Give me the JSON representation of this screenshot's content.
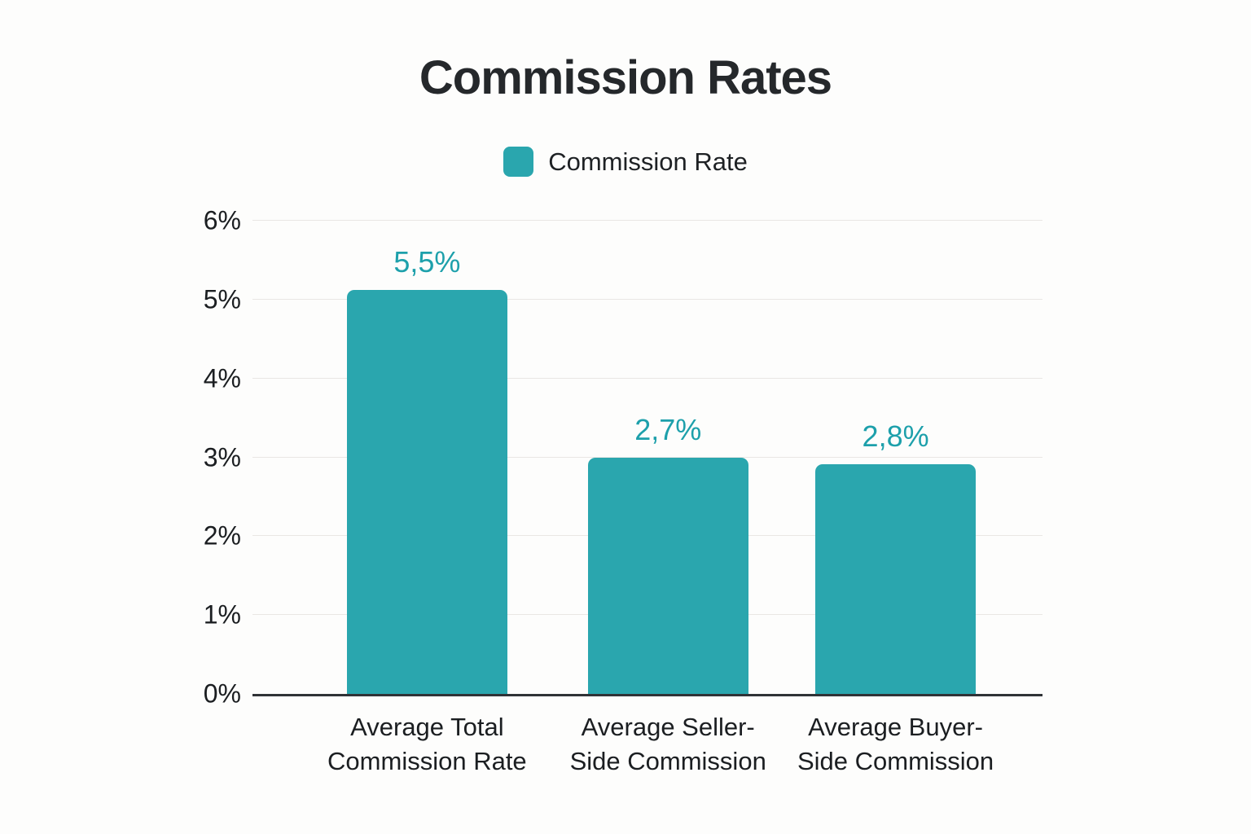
{
  "page": {
    "background": "#fdfdfc"
  },
  "chart_data": {
    "type": "bar",
    "title": "Commission Rates",
    "legend": [
      {
        "label": "Commission Rate",
        "color": "#2aa6ae"
      }
    ],
    "legend_position": "top",
    "categories": [
      "Average Total Commission Rate",
      "Average Seller-Side Commission",
      "Average Buyer-Side Commission"
    ],
    "category_label_lines": [
      [
        "Average Total",
        "Commission Rate"
      ],
      [
        "Average Seller-",
        "Side Commission"
      ],
      [
        "Average Buyer-",
        "Side Commission"
      ]
    ],
    "series": [
      {
        "name": "Commission Rate",
        "values": [
          5.5,
          2.7,
          2.8
        ],
        "value_labels": [
          "5,5%",
          "2,7%",
          "2,8%"
        ]
      }
    ],
    "bar_rendered_heights_pct": [
      5.12,
      3.0,
      2.91
    ],
    "y_ticks": [
      "6%",
      "5%",
      "4%",
      "3%",
      "2%",
      "1%",
      "0%"
    ],
    "y_tick_values": [
      6,
      5,
      4,
      3,
      2,
      1,
      0
    ],
    "ylim": [
      0,
      6
    ],
    "xlabel": "",
    "ylabel": "",
    "grid": "horizontal",
    "band_centers_frac": [
      0.221,
      0.526,
      0.814
    ],
    "bar_width_frac": 0.203,
    "colors": {
      "bar": "#2aa6ae",
      "value_label": "#1da0ab",
      "grid": "#e9e7e4",
      "axis": "#303336",
      "text": "#1b1e21",
      "title": "#25282b"
    }
  }
}
